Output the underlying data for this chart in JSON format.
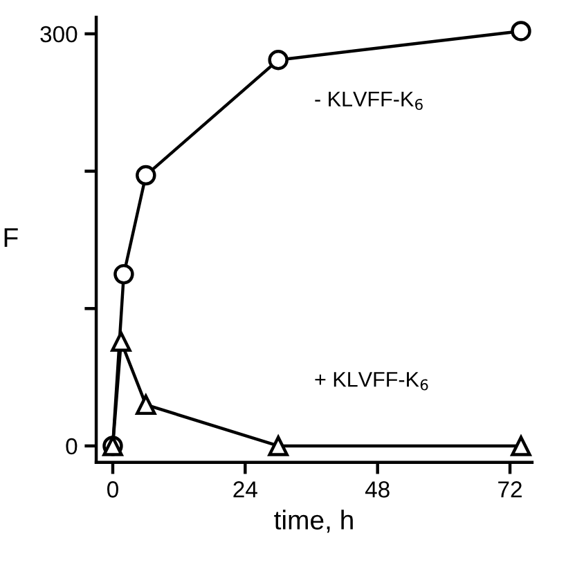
{
  "chart_data": {
    "type": "line",
    "xlabel": "time, h",
    "ylabel": "F",
    "x": [
      0,
      2,
      6,
      30,
      74
    ],
    "series": [
      {
        "name": "- KLVFF-K$_{6}$",
        "color": "#000000",
        "marker": "circle",
        "values": [
          0,
          125,
          197,
          281,
          302
        ]
      },
      {
        "name": "+ KLVFF-K$_{6}$",
        "color": "#000000",
        "marker": "triangle",
        "x": [
          0,
          1.5,
          6,
          30,
          74
        ],
        "values": [
          0,
          76,
          30,
          0,
          0
        ]
      }
    ],
    "xlim": [
      -3,
      76
    ],
    "ylim": [
      -12,
      312
    ],
    "xticks": [
      0,
      24,
      48,
      72
    ],
    "yticks": [
      0,
      {
        "value": 100,
        "label": null
      },
      {
        "value": 200,
        "label": null
      },
      300
    ],
    "grid": false,
    "legend": false,
    "line_style": "solid"
  }
}
